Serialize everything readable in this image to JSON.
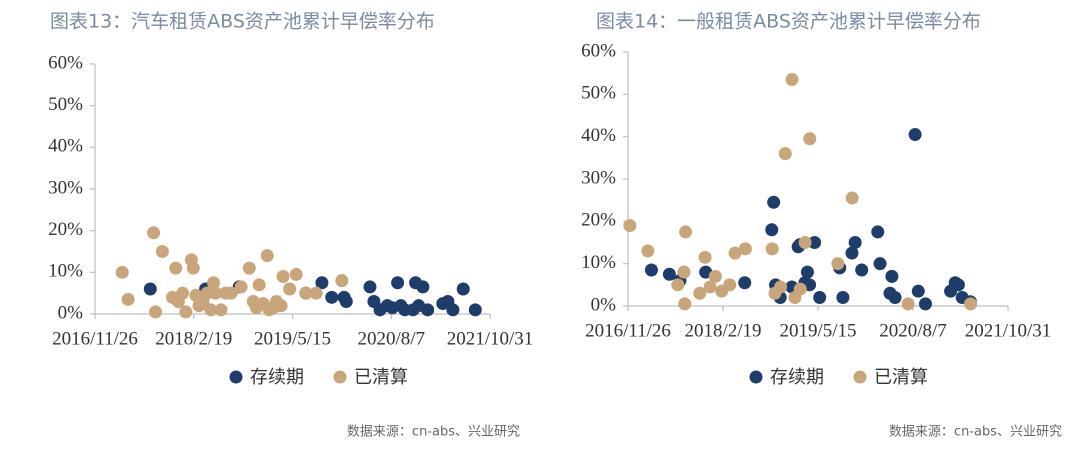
{
  "chart_data": [
    {
      "type": "scatter",
      "title": "图表13：汽车租赁ABS资产池累计早偿率分布",
      "source": "数据来源：cn-abs、兴业研究",
      "xlim": [
        "2016/11/26",
        "2021/10/31"
      ],
      "xticks": [
        "2016/11/26",
        "2018/2/19",
        "2019/5/15",
        "2020/8/7",
        "2021/10/31"
      ],
      "ylim": [
        0,
        60
      ],
      "yticks": [
        {
          "value": 0,
          "label": "0%"
        },
        {
          "value": 10,
          "label": "10%"
        },
        {
          "value": 20,
          "label": "20%"
        },
        {
          "value": 30,
          "label": "30%"
        },
        {
          "value": 40,
          "label": "40%"
        },
        {
          "value": 50,
          "label": "50%"
        },
        {
          "value": 60,
          "label": "60%"
        }
      ],
      "series": [
        {
          "name": "存续期",
          "color": "#1f3d6b",
          "x": [
            "2017/8/5",
            "2018/4/14",
            "2018/9/14",
            "2019/7/15",
            "2019/9/26",
            "2019/11/10",
            "2020/1/5",
            "2020/1/15",
            "2020/5/2",
            "2020/5/20",
            "2020/6/17",
            "2020/7/20",
            "2020/8/12",
            "2020/9/5",
            "2020/9/20",
            "2020/10/8",
            "2020/11/14",
            "2020/11/26",
            "2020/12/10",
            "2020/12/29",
            "2021/1/20",
            "2021/3/30",
            "2021/4/22",
            "2021/5/15",
            "2021/7/1",
            "2021/8/25"
          ],
          "values": [
            6,
            6,
            6.5,
            5,
            7.5,
            4,
            4,
            3,
            6.5,
            3,
            1,
            2,
            1.5,
            7.5,
            2,
            1,
            1,
            7.5,
            2,
            6.5,
            1,
            2.5,
            3,
            1,
            6,
            1
          ]
        },
        {
          "name": "已清算",
          "color": "#c8a57a",
          "x": [
            "2017/3/30",
            "2017/4/26",
            "2017/8/20",
            "2017/8/29",
            "2017/9/29",
            "2017/11/14",
            "2017/11/29",
            "2017/12/11",
            "2017/12/30",
            "2018/1/14",
            "2018/2/8",
            "2018/2/17",
            "2018/3/1",
            "2018/3/15",
            "2018/4/2",
            "2018/4/20",
            "2018/5/8",
            "2018/5/20",
            "2018/5/30",
            "2018/6/23",
            "2018/7/15",
            "2018/8/8",
            "2018/9/23",
            "2018/10/30",
            "2018/11/17",
            "2018/12/2",
            "2018/12/14",
            "2019/1/2",
            "2019/1/20",
            "2019/1/29",
            "2019/2/16",
            "2019/3/3",
            "2019/3/24",
            "2019/4/2",
            "2019/5/2",
            "2019/6/1",
            "2019/7/15",
            "2019/8/31",
            "2019/12/26"
          ],
          "values": [
            10,
            3.5,
            19.5,
            0.5,
            15,
            4,
            11,
            3,
            5,
            0.5,
            13,
            11,
            4.5,
            2,
            3,
            5,
            1,
            7.5,
            5,
            1,
            5,
            5,
            6.5,
            11,
            3,
            1.5,
            7,
            2.5,
            14,
            1,
            1.5,
            3,
            2,
            9,
            6,
            9.5,
            5,
            5,
            8
          ]
        }
      ]
    },
    {
      "type": "scatter",
      "title": "图表14：一般租赁ABS资产池累计早偿率分布",
      "source": "数据来源：cn-abs、兴业研究",
      "xlim": [
        "2016/11/26",
        "2021/10/31"
      ],
      "xticks": [
        "2016/11/26",
        "2018/2/19",
        "2019/5/15",
        "2020/8/7",
        "2021/10/31"
      ],
      "ylim": [
        0,
        60
      ],
      "yticks": [
        {
          "value": 0,
          "label": "0%"
        },
        {
          "value": 10,
          "label": "10%"
        },
        {
          "value": 20,
          "label": "20%"
        },
        {
          "value": 30,
          "label": "30%"
        },
        {
          "value": 40,
          "label": "40%"
        },
        {
          "value": 50,
          "label": "50%"
        },
        {
          "value": 60,
          "label": "60%"
        }
      ],
      "series": [
        {
          "name": "存续期",
          "color": "#1f3d6b",
          "x": [
            "2017/3/17",
            "2017/6/10",
            "2017/7/30",
            "2017/11/29",
            "2018/6/2",
            "2018/10/8",
            "2018/10/17",
            "2018/10/26",
            "2018/11/17",
            "2019/1/11",
            "2019/2/10",
            "2019/2/19",
            "2019/3/14",
            "2019/3/26",
            "2019/4/5",
            "2019/4/29",
            "2019/5/23",
            "2019/8/26",
            "2019/9/10",
            "2019/10/23",
            "2019/11/7",
            "2019/12/8",
            "2020/2/22",
            "2020/3/4",
            "2020/4/20",
            "2020/4/29",
            "2020/5/14",
            "2020/8/17",
            "2020/9/1",
            "2020/10/5",
            "2021/2/1",
            "2021/2/23",
            "2021/3/10",
            "2021/3/28",
            "2021/5/6"
          ],
          "values": [
            8.5,
            7.5,
            6,
            8,
            5.5,
            18,
            24.5,
            5,
            2,
            4.5,
            14,
            14.5,
            5.5,
            8,
            5,
            15,
            2,
            9,
            2,
            12.5,
            15,
            8.5,
            17.5,
            10,
            3,
            7,
            2,
            40.5,
            3.5,
            0.5,
            3.5,
            5.5,
            5,
            2,
            1
          ]
        },
        {
          "name": "已清算",
          "color": "#c8a57a",
          "x": [
            "2016/12/5",
            "2017/2/28",
            "2017/7/20",
            "2017/8/18",
            "2017/8/22",
            "2017/8/26",
            "2017/11/1",
            "2017/11/26",
            "2017/12/20",
            "2018/1/14",
            "2018/2/13",
            "2018/3/23",
            "2018/4/17",
            "2018/6/5",
            "2018/10/10",
            "2018/10/23",
            "2018/11/19",
            "2018/12/11",
            "2019/1/12",
            "2019/1/26",
            "2019/2/20",
            "2019/3/15",
            "2019/4/6",
            "2019/8/17",
            "2019/10/24",
            "2020/7/15",
            "2021/5/7"
          ],
          "values": [
            19,
            13,
            5,
            8,
            0.5,
            17.5,
            3,
            11.5,
            4.5,
            7,
            3.5,
            5,
            12.5,
            13.5,
            13.5,
            3,
            4.5,
            36,
            53.5,
            2,
            4,
            15,
            39.5,
            10,
            25.5,
            0.5,
            0.5
          ]
        }
      ]
    }
  ]
}
